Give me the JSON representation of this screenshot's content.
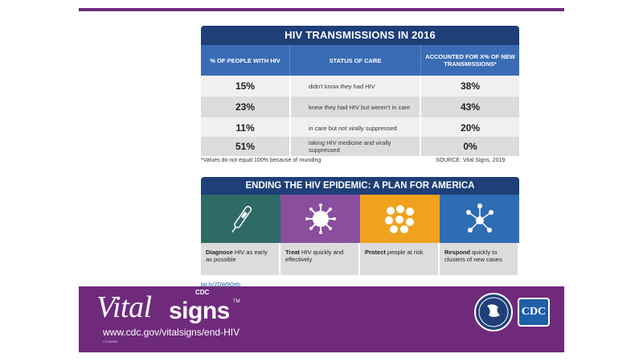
{
  "table": {
    "title": "HIV TRANSMISSIONS IN 2016",
    "headers": [
      "% OF PEOPLE WITH HIV",
      "STATUS OF CARE",
      "ACCOUNTED FOR X% OF NEW TRANSMISSIONS*"
    ],
    "rows": [
      {
        "people_pct": "15%",
        "status": "didn't know they had HIV",
        "transmissions_pct": "38%"
      },
      {
        "people_pct": "23%",
        "status": "knew they had HIV but weren't in care",
        "transmissions_pct": "43%"
      },
      {
        "people_pct": "11%",
        "status": "in care but not virally suppressed",
        "transmissions_pct": "20%"
      },
      {
        "people_pct": "51%",
        "status": "taking HIV medicine and virally suppressed",
        "transmissions_pct": "0%"
      }
    ],
    "footnote": "*Values do not equal 100% because of rounding",
    "source": "SOURCE: Vital Signs, 2019"
  },
  "plan": {
    "title": "ENDING THE HIV EPIDEMIC: A PLAN FOR AMERICA",
    "items": [
      {
        "bold": "Diagnose",
        "rest": " HIV as early as possible",
        "color": "#2f6b66",
        "icon": "test-swab-icon"
      },
      {
        "bold": "Treat",
        "rest": " HIV quickly and effectively",
        "color": "#8b4e9f",
        "icon": "virus-icon"
      },
      {
        "bold": "Protect",
        "rest": " people at risk",
        "color": "#f0a21c",
        "icon": "cells-icon"
      },
      {
        "bold": "Respond",
        "rest": " quickly to clusters of new cases",
        "color": "#2e6db3",
        "icon": "network-icon"
      }
    ],
    "link": "bit.ly/2DW9Oeb"
  },
  "footer": {
    "cdc_small": "CDC",
    "vital": "Vital",
    "signs": "signs",
    "tm": "TM",
    "url": "www.cdc.gov/vitalsigns/end-HIV",
    "code": "CS289661",
    "cdc_logo": "CDC"
  },
  "colors": {
    "navy": "#1f3f78",
    "blue": "#3a6cb5",
    "purple": "#6f2a7c"
  }
}
